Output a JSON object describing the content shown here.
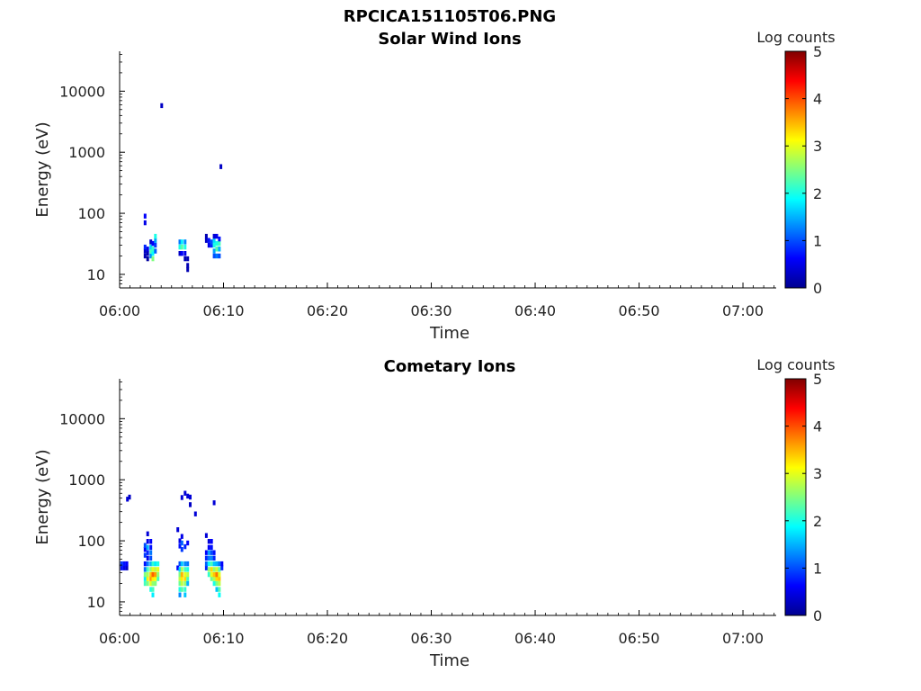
{
  "figure_title": "RPCICA151105T06.PNG",
  "colormap": [
    "#00008f",
    "#0000ff",
    "#0080ff",
    "#00ffff",
    "#80ff80",
    "#ffff00",
    "#ff8000",
    "#ff0000",
    "#800000"
  ],
  "chart_data": [
    {
      "type": "heatmap",
      "title": "Solar Wind Ions",
      "xlabel": "Time",
      "ylabel": "Energy (eV)",
      "x_ticks": [
        "06:00",
        "06:10",
        "06:20",
        "06:30",
        "06:40",
        "06:50",
        "07:00"
      ],
      "y_ticks": [
        "10",
        "100",
        "1000",
        "10000"
      ],
      "y_scale": "log",
      "ylim": [
        6,
        45000
      ],
      "colorbar": {
        "label": "Log counts",
        "ticks": [
          "0",
          "1",
          "2",
          "3",
          "4",
          "5"
        ],
        "range": [
          0,
          5
        ]
      },
      "cells": [
        {
          "t": 2.45,
          "e": 20,
          "v": 0.2
        },
        {
          "t": 2.45,
          "e": 24,
          "v": 0.3
        },
        {
          "t": 2.45,
          "e": 28,
          "v": 0.8
        },
        {
          "t": 2.7,
          "e": 18,
          "v": 0.1
        },
        {
          "t": 2.7,
          "e": 22,
          "v": 0.2
        },
        {
          "t": 2.7,
          "e": 26,
          "v": 0.5
        },
        {
          "t": 2.45,
          "e": 70,
          "v": 0.5
        },
        {
          "t": 2.45,
          "e": 90,
          "v": 0.6
        },
        {
          "t": 3.0,
          "e": 20,
          "v": 1.3
        },
        {
          "t": 3.0,
          "e": 24,
          "v": 2.2
        },
        {
          "t": 3.0,
          "e": 28,
          "v": 1.7
        },
        {
          "t": 3.0,
          "e": 34,
          "v": 0.3
        },
        {
          "t": 3.2,
          "e": 18,
          "v": 2.5
        },
        {
          "t": 3.2,
          "e": 22,
          "v": 1.9
        },
        {
          "t": 3.2,
          "e": 26,
          "v": 2.1
        },
        {
          "t": 3.2,
          "e": 32,
          "v": 0.6
        },
        {
          "t": 3.45,
          "e": 24,
          "v": 1.1
        },
        {
          "t": 3.45,
          "e": 30,
          "v": 0.9
        },
        {
          "t": 3.45,
          "e": 36,
          "v": 1.4
        },
        {
          "t": 3.45,
          "e": 42,
          "v": 2.0
        },
        {
          "t": 4.05,
          "e": 5800,
          "v": 0.3
        },
        {
          "t": 5.8,
          "e": 34,
          "v": 1.2
        },
        {
          "t": 5.8,
          "e": 28,
          "v": 2.0
        },
        {
          "t": 5.8,
          "e": 22,
          "v": 0.3
        },
        {
          "t": 6.0,
          "e": 34,
          "v": 1.8
        },
        {
          "t": 6.0,
          "e": 28,
          "v": 2.3
        },
        {
          "t": 6.0,
          "e": 22,
          "v": 0.6
        },
        {
          "t": 6.3,
          "e": 34,
          "v": 1.3
        },
        {
          "t": 6.3,
          "e": 28,
          "v": 2.0
        },
        {
          "t": 6.3,
          "e": 22,
          "v": 0.5
        },
        {
          "t": 6.3,
          "e": 18,
          "v": 0.2
        },
        {
          "t": 6.55,
          "e": 18,
          "v": 0.2
        },
        {
          "t": 6.55,
          "e": 14,
          "v": 0.2
        },
        {
          "t": 6.55,
          "e": 12,
          "v": 0.2
        },
        {
          "t": 8.35,
          "e": 42,
          "v": 0.2
        },
        {
          "t": 8.35,
          "e": 36,
          "v": 0.3
        },
        {
          "t": 8.6,
          "e": 36,
          "v": 0.7
        },
        {
          "t": 8.6,
          "e": 30,
          "v": 0.5
        },
        {
          "t": 8.85,
          "e": 30,
          "v": 0.8
        },
        {
          "t": 8.85,
          "e": 34,
          "v": 1.0
        },
        {
          "t": 9.1,
          "e": 24,
          "v": 1.4
        },
        {
          "t": 9.1,
          "e": 30,
          "v": 2.0
        },
        {
          "t": 9.1,
          "e": 36,
          "v": 1.7
        },
        {
          "t": 9.1,
          "e": 42,
          "v": 0.4
        },
        {
          "t": 9.1,
          "e": 20,
          "v": 1.0
        },
        {
          "t": 9.35,
          "e": 20,
          "v": 1.2
        },
        {
          "t": 9.35,
          "e": 26,
          "v": 2.3
        },
        {
          "t": 9.35,
          "e": 32,
          "v": 2.0
        },
        {
          "t": 9.35,
          "e": 42,
          "v": 0.5
        },
        {
          "t": 9.6,
          "e": 20,
          "v": 1.0
        },
        {
          "t": 9.6,
          "e": 26,
          "v": 1.5
        },
        {
          "t": 9.6,
          "e": 32,
          "v": 2.2
        },
        {
          "t": 9.6,
          "e": 38,
          "v": 0.7
        },
        {
          "t": 9.75,
          "e": 580,
          "v": 0.3
        }
      ]
    },
    {
      "type": "heatmap",
      "title": "Cometary Ions",
      "xlabel": "Time",
      "ylabel": "Energy (eV)",
      "x_ticks": [
        "06:00",
        "06:10",
        "06:20",
        "06:30",
        "06:40",
        "06:50",
        "07:00"
      ],
      "y_ticks": [
        "10",
        "100",
        "1000",
        "10000"
      ],
      "y_scale": "log",
      "ylim": [
        6,
        45000
      ],
      "colorbar": {
        "label": "Log counts",
        "ticks": [
          "0",
          "1",
          "2",
          "3",
          "4",
          "5"
        ],
        "range": [
          0,
          5
        ]
      },
      "cells": [
        {
          "t": 0.2,
          "e": 36,
          "v": 0.7
        },
        {
          "t": 0.2,
          "e": 42,
          "v": 0.9
        },
        {
          "t": 0.45,
          "e": 36,
          "v": 0.5
        },
        {
          "t": 0.45,
          "e": 42,
          "v": 0.7
        },
        {
          "t": 0.7,
          "e": 36,
          "v": 0.3
        },
        {
          "t": 0.7,
          "e": 42,
          "v": 0.6
        },
        {
          "t": 0.75,
          "e": 480,
          "v": 0.4
        },
        {
          "t": 0.95,
          "e": 520,
          "v": 0.3
        },
        {
          "t": 2.45,
          "e": 20,
          "v": 2.2
        },
        {
          "t": 2.45,
          "e": 24,
          "v": 1.8
        },
        {
          "t": 2.45,
          "e": 28,
          "v": 2.5
        },
        {
          "t": 2.45,
          "e": 34,
          "v": 1.2
        },
        {
          "t": 2.45,
          "e": 42,
          "v": 0.7
        },
        {
          "t": 2.45,
          "e": 58,
          "v": 0.9
        },
        {
          "t": 2.45,
          "e": 72,
          "v": 0.6
        },
        {
          "t": 2.45,
          "e": 84,
          "v": 1.0
        },
        {
          "t": 2.7,
          "e": 20,
          "v": 2.5
        },
        {
          "t": 2.7,
          "e": 24,
          "v": 3.2
        },
        {
          "t": 2.7,
          "e": 28,
          "v": 2.7
        },
        {
          "t": 2.7,
          "e": 34,
          "v": 2.2
        },
        {
          "t": 2.7,
          "e": 42,
          "v": 1.2
        },
        {
          "t": 2.7,
          "e": 52,
          "v": 0.5
        },
        {
          "t": 2.7,
          "e": 64,
          "v": 0.8
        },
        {
          "t": 2.7,
          "e": 78,
          "v": 1.5
        },
        {
          "t": 2.7,
          "e": 98,
          "v": 0.5
        },
        {
          "t": 2.7,
          "e": 130,
          "v": 0.4
        },
        {
          "t": 3.0,
          "e": 16,
          "v": 2.0
        },
        {
          "t": 3.0,
          "e": 20,
          "v": 3.0
        },
        {
          "t": 3.0,
          "e": 24,
          "v": 3.6
        },
        {
          "t": 3.0,
          "e": 28,
          "v": 3.4
        },
        {
          "t": 3.0,
          "e": 34,
          "v": 2.6
        },
        {
          "t": 3.0,
          "e": 42,
          "v": 1.5
        },
        {
          "t": 3.0,
          "e": 52,
          "v": 1.0
        },
        {
          "t": 3.0,
          "e": 64,
          "v": 1.2
        },
        {
          "t": 3.0,
          "e": 78,
          "v": 0.7
        },
        {
          "t": 3.0,
          "e": 98,
          "v": 0.6
        },
        {
          "t": 3.2,
          "e": 13,
          "v": 1.8
        },
        {
          "t": 3.2,
          "e": 16,
          "v": 2.2
        },
        {
          "t": 3.2,
          "e": 20,
          "v": 2.6
        },
        {
          "t": 3.2,
          "e": 24,
          "v": 3.2
        },
        {
          "t": 3.2,
          "e": 28,
          "v": 3.9
        },
        {
          "t": 3.2,
          "e": 34,
          "v": 3.0
        },
        {
          "t": 3.2,
          "e": 42,
          "v": 2.1
        },
        {
          "t": 3.45,
          "e": 20,
          "v": 2.5
        },
        {
          "t": 3.45,
          "e": 24,
          "v": 3.1
        },
        {
          "t": 3.45,
          "e": 28,
          "v": 3.6
        },
        {
          "t": 3.45,
          "e": 34,
          "v": 2.8
        },
        {
          "t": 3.45,
          "e": 42,
          "v": 1.8
        },
        {
          "t": 3.7,
          "e": 24,
          "v": 2.2
        },
        {
          "t": 3.7,
          "e": 28,
          "v": 2.6
        },
        {
          "t": 3.7,
          "e": 34,
          "v": 3.0
        },
        {
          "t": 3.7,
          "e": 42,
          "v": 2.0
        },
        {
          "t": 5.6,
          "e": 36,
          "v": 0.6
        },
        {
          "t": 5.6,
          "e": 152,
          "v": 0.4
        },
        {
          "t": 5.8,
          "e": 13,
          "v": 1.3
        },
        {
          "t": 5.8,
          "e": 16,
          "v": 2.0
        },
        {
          "t": 5.8,
          "e": 20,
          "v": 2.4
        },
        {
          "t": 5.8,
          "e": 24,
          "v": 2.8
        },
        {
          "t": 5.8,
          "e": 28,
          "v": 2.5
        },
        {
          "t": 5.8,
          "e": 34,
          "v": 1.7
        },
        {
          "t": 5.8,
          "e": 42,
          "v": 1.0
        },
        {
          "t": 5.8,
          "e": 82,
          "v": 0.7
        },
        {
          "t": 5.8,
          "e": 100,
          "v": 0.5
        },
        {
          "t": 6.0,
          "e": 16,
          "v": 2.3
        },
        {
          "t": 6.0,
          "e": 20,
          "v": 2.8
        },
        {
          "t": 6.0,
          "e": 24,
          "v": 3.2
        },
        {
          "t": 6.0,
          "e": 28,
          "v": 3.5
        },
        {
          "t": 6.0,
          "e": 34,
          "v": 2.7
        },
        {
          "t": 6.0,
          "e": 42,
          "v": 1.6
        },
        {
          "t": 6.0,
          "e": 72,
          "v": 0.9
        },
        {
          "t": 6.0,
          "e": 92,
          "v": 1.1
        },
        {
          "t": 6.0,
          "e": 118,
          "v": 0.5
        },
        {
          "t": 6.0,
          "e": 510,
          "v": 0.4
        },
        {
          "t": 6.3,
          "e": 13,
          "v": 1.6
        },
        {
          "t": 6.3,
          "e": 16,
          "v": 2.1
        },
        {
          "t": 6.3,
          "e": 20,
          "v": 2.6
        },
        {
          "t": 6.3,
          "e": 24,
          "v": 3.3
        },
        {
          "t": 6.3,
          "e": 28,
          "v": 3.0
        },
        {
          "t": 6.3,
          "e": 34,
          "v": 2.2
        },
        {
          "t": 6.3,
          "e": 42,
          "v": 1.3
        },
        {
          "t": 6.3,
          "e": 80,
          "v": 0.8
        },
        {
          "t": 6.3,
          "e": 600,
          "v": 0.4
        },
        {
          "t": 6.55,
          "e": 20,
          "v": 1.5
        },
        {
          "t": 6.55,
          "e": 24,
          "v": 2.2
        },
        {
          "t": 6.55,
          "e": 28,
          "v": 2.8
        },
        {
          "t": 6.55,
          "e": 34,
          "v": 2.0
        },
        {
          "t": 6.55,
          "e": 42,
          "v": 1.2
        },
        {
          "t": 6.55,
          "e": 92,
          "v": 0.6
        },
        {
          "t": 6.55,
          "e": 540,
          "v": 0.4
        },
        {
          "t": 6.8,
          "e": 390,
          "v": 0.3
        },
        {
          "t": 6.8,
          "e": 520,
          "v": 0.4
        },
        {
          "t": 7.3,
          "e": 275,
          "v": 0.4
        },
        {
          "t": 8.35,
          "e": 36,
          "v": 0.8
        },
        {
          "t": 8.35,
          "e": 42,
          "v": 1.1
        },
        {
          "t": 8.35,
          "e": 52,
          "v": 0.8
        },
        {
          "t": 8.35,
          "e": 64,
          "v": 0.6
        },
        {
          "t": 8.35,
          "e": 122,
          "v": 0.4
        },
        {
          "t": 8.6,
          "e": 28,
          "v": 2.1
        },
        {
          "t": 8.6,
          "e": 34,
          "v": 2.6
        },
        {
          "t": 8.6,
          "e": 42,
          "v": 1.9
        },
        {
          "t": 8.6,
          "e": 52,
          "v": 1.2
        },
        {
          "t": 8.6,
          "e": 64,
          "v": 1.4
        },
        {
          "t": 8.6,
          "e": 78,
          "v": 0.6
        },
        {
          "t": 8.6,
          "e": 98,
          "v": 0.4
        },
        {
          "t": 8.85,
          "e": 24,
          "v": 2.4
        },
        {
          "t": 8.85,
          "e": 28,
          "v": 3.0
        },
        {
          "t": 8.85,
          "e": 34,
          "v": 3.3
        },
        {
          "t": 8.85,
          "e": 42,
          "v": 2.2
        },
        {
          "t": 8.85,
          "e": 52,
          "v": 1.3
        },
        {
          "t": 8.85,
          "e": 64,
          "v": 1.0
        },
        {
          "t": 8.85,
          "e": 78,
          "v": 0.7
        },
        {
          "t": 8.85,
          "e": 98,
          "v": 0.6
        },
        {
          "t": 9.1,
          "e": 20,
          "v": 2.0
        },
        {
          "t": 9.1,
          "e": 24,
          "v": 2.7
        },
        {
          "t": 9.1,
          "e": 28,
          "v": 3.4
        },
        {
          "t": 9.1,
          "e": 34,
          "v": 2.6
        },
        {
          "t": 9.1,
          "e": 42,
          "v": 1.6
        },
        {
          "t": 9.1,
          "e": 52,
          "v": 0.8
        },
        {
          "t": 9.1,
          "e": 64,
          "v": 0.7
        },
        {
          "t": 9.1,
          "e": 420,
          "v": 0.4
        },
        {
          "t": 9.35,
          "e": 16,
          "v": 1.6
        },
        {
          "t": 9.35,
          "e": 20,
          "v": 2.5
        },
        {
          "t": 9.35,
          "e": 24,
          "v": 3.3
        },
        {
          "t": 9.35,
          "e": 28,
          "v": 3.8
        },
        {
          "t": 9.35,
          "e": 34,
          "v": 2.9
        },
        {
          "t": 9.35,
          "e": 42,
          "v": 1.5
        },
        {
          "t": 9.6,
          "e": 13,
          "v": 1.9
        },
        {
          "t": 9.6,
          "e": 16,
          "v": 2.3
        },
        {
          "t": 9.6,
          "e": 20,
          "v": 2.8
        },
        {
          "t": 9.6,
          "e": 24,
          "v": 3.4
        },
        {
          "t": 9.6,
          "e": 28,
          "v": 3.0
        },
        {
          "t": 9.6,
          "e": 34,
          "v": 2.3
        },
        {
          "t": 9.6,
          "e": 42,
          "v": 1.2
        },
        {
          "t": 9.85,
          "e": 36,
          "v": 0.8
        },
        {
          "t": 9.85,
          "e": 42,
          "v": 0.6
        }
      ]
    }
  ]
}
